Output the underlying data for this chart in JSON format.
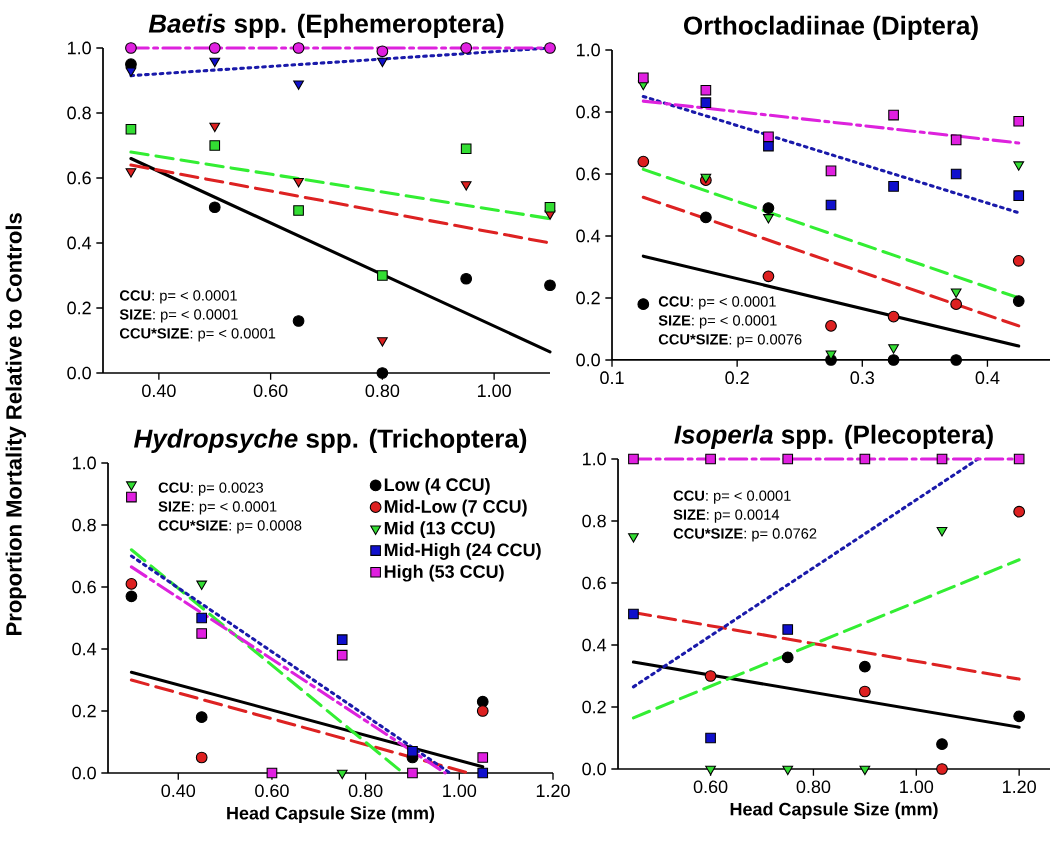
{
  "chart_data": [
    {
      "type": "scatter",
      "title": "*Baetis* spp. (Ephemeroptera)",
      "ylabel": "Proportion Mortality Relative to Controls",
      "xlim": [
        0.3,
        1.1
      ],
      "xticks": [
        {
          "value": 0.4,
          "label": "0.40"
        },
        {
          "value": 0.6,
          "label": "0.60"
        },
        {
          "value": 0.8,
          "label": "0.80"
        },
        {
          "value": 1.0,
          "label": "1.00"
        }
      ],
      "ylim": [
        0,
        1
      ],
      "yticks": [
        {
          "value": 0,
          "label": "0.0"
        },
        {
          "value": 0.2,
          "label": "0.2"
        },
        {
          "value": 0.4,
          "label": "0.4"
        },
        {
          "value": 0.6,
          "label": "0.6"
        },
        {
          "value": 0.8,
          "label": "0.8"
        },
        {
          "value": 1,
          "label": "1.0"
        }
      ],
      "annotations": [
        "**CCU**: p= < 0.0001",
        "**SIZE**: p= < 0.0001",
        "**CCU*SIZE**: p= < 0.0001"
      ],
      "series": [
        {
          "color": "#000000",
          "marker": "circle",
          "x": [
            0.35,
            0.5,
            0.65,
            0.8,
            0.95,
            1.1
          ],
          "values": [
            0.95,
            0.51,
            0.16,
            0.0,
            0.29,
            0.27
          ]
        },
        {
          "color": "#dd2020",
          "marker": "triangle",
          "x": [
            0.35,
            0.5,
            0.65,
            0.8,
            0.95,
            1.1
          ],
          "values": [
            0.62,
            0.76,
            0.59,
            0.1,
            0.58,
            0.49
          ]
        },
        {
          "color": "#33dd33",
          "marker": "square",
          "x": [
            0.35,
            0.5,
            0.65,
            0.8,
            0.95,
            1.1
          ],
          "values": [
            0.75,
            0.7,
            0.5,
            0.3,
            0.69,
            0.51
          ]
        },
        {
          "color": "#1010cc",
          "marker": "triangle",
          "x": [
            0.35,
            0.5,
            0.65,
            0.8
          ],
          "values": [
            0.93,
            0.96,
            0.89,
            0.96
          ]
        },
        {
          "color": "#e020e0",
          "marker": "circle",
          "x": [
            0.35,
            0.5,
            0.65,
            0.8,
            0.95,
            1.1
          ],
          "values": [
            1.0,
            1.0,
            1.0,
            0.99,
            1.0,
            1.0
          ]
        },
        {
          "type": "line",
          "color": "#000000",
          "line_style": "solid",
          "x": [
            0.35,
            1.1
          ],
          "values": [
            0.66,
            0.065
          ]
        },
        {
          "type": "line",
          "color": "#dd2222",
          "line_style": "dashed",
          "x": [
            0.35,
            1.1
          ],
          "values": [
            0.64,
            0.4
          ]
        },
        {
          "type": "line",
          "color": "#33ee33",
          "line_style": "dashed",
          "x": [
            0.35,
            1.1
          ],
          "values": [
            0.68,
            0.475
          ]
        },
        {
          "type": "line",
          "color": "#1a1aaa",
          "line_style": "dotted",
          "x": [
            0.35,
            1.1
          ],
          "values": [
            0.915,
            1.0
          ]
        },
        {
          "type": "line",
          "color": "#dd22dd",
          "line_style": "dashdot",
          "x": [
            0.35,
            1.1
          ],
          "values": [
            1.0,
            1.0
          ]
        }
      ]
    },
    {
      "type": "scatter",
      "title": "Orthocladiinae (Diptera)",
      "xlim": [
        0.1,
        0.45
      ],
      "xticks": [
        0.1,
        0.2,
        0.3,
        0.4
      ],
      "ylim": [
        0,
        1
      ],
      "yticks": [
        {
          "value": 0,
          "label": "0.0"
        },
        {
          "value": 0.2,
          "label": "0.2"
        },
        {
          "value": 0.4,
          "label": "0.4"
        },
        {
          "value": 0.6,
          "label": "0.6"
        },
        {
          "value": 0.8,
          "label": "0.8"
        },
        {
          "value": 1,
          "label": "1.0"
        }
      ],
      "annotations": [
        "**CCU**: p= < 0.0001",
        "**SIZE**: p= < 0.0001",
        "**CCU*SIZE**: p= 0.0076"
      ],
      "series": [
        {
          "color": "#000000",
          "marker": "circle",
          "x": [
            0.125,
            0.175,
            0.225,
            0.275,
            0.325,
            0.375,
            0.425
          ],
          "values": [
            0.18,
            0.46,
            0.49,
            0.0,
            0.0,
            0.0,
            0.19
          ]
        },
        {
          "color": "#dd2020",
          "marker": "circle",
          "x": [
            0.125,
            0.175,
            0.225,
            0.275,
            0.325,
            0.375,
            0.425
          ],
          "values": [
            0.64,
            0.58,
            0.27,
            0.11,
            0.14,
            0.18,
            0.32
          ]
        },
        {
          "color": "#33dd33",
          "marker": "triangle",
          "x": [
            0.125,
            0.175,
            0.225,
            0.275,
            0.325,
            0.375,
            0.425
          ],
          "values": [
            0.89,
            0.59,
            0.46,
            0.02,
            0.04,
            0.22,
            0.63
          ]
        },
        {
          "color": "#1010cc",
          "marker": "square",
          "x": [
            0.175,
            0.225,
            0.275,
            0.325,
            0.375,
            0.425
          ],
          "values": [
            0.83,
            0.69,
            0.5,
            0.56,
            0.6,
            0.53
          ]
        },
        {
          "color": "#e020e0",
          "marker": "square",
          "x": [
            0.125,
            0.175,
            0.225,
            0.275,
            0.325,
            0.375,
            0.425
          ],
          "values": [
            0.91,
            0.87,
            0.72,
            0.61,
            0.79,
            0.71,
            0.77
          ]
        },
        {
          "type": "line",
          "color": "#000000",
          "line_style": "solid",
          "x": [
            0.125,
            0.425
          ],
          "values": [
            0.335,
            0.045
          ]
        },
        {
          "type": "line",
          "color": "#dd2222",
          "line_style": "dashed",
          "x": [
            0.125,
            0.425
          ],
          "values": [
            0.525,
            0.11
          ]
        },
        {
          "type": "line",
          "color": "#33ee33",
          "line_style": "dashed",
          "x": [
            0.125,
            0.425
          ],
          "values": [
            0.615,
            0.2
          ]
        },
        {
          "type": "line",
          "color": "#1a1aaa",
          "line_style": "dotted",
          "x": [
            0.125,
            0.425
          ],
          "values": [
            0.85,
            0.475
          ]
        },
        {
          "type": "line",
          "color": "#dd22dd",
          "line_style": "dashdot",
          "x": [
            0.125,
            0.425
          ],
          "values": [
            0.835,
            0.7
          ]
        }
      ]
    },
    {
      "type": "scatter",
      "title": "*Hydropsyche* spp. (Trichoptera)",
      "xlabel": "Head Capsule Size (mm)",
      "legend": "top right",
      "xlim": [
        0.25,
        1.2
      ],
      "xticks": [
        {
          "value": 0.4,
          "label": "0.40"
        },
        {
          "value": 0.6,
          "label": "0.60"
        },
        {
          "value": 0.8,
          "label": "0.80"
        },
        {
          "value": 1.0,
          "label": "1.00"
        },
        {
          "value": 1.2,
          "label": "1.20"
        }
      ],
      "ylim": [
        0,
        1
      ],
      "yticks": [
        {
          "value": 0,
          "label": "0.0"
        },
        {
          "value": 0.2,
          "label": "0.2"
        },
        {
          "value": 0.4,
          "label": "0.4"
        },
        {
          "value": 0.6,
          "label": "0.6"
        },
        {
          "value": 0.8,
          "label": "0.8"
        },
        {
          "value": 1,
          "label": "1.0"
        }
      ],
      "annotations": [
        "**CCU**: p= 0.0023",
        "**SIZE**: p= < 0.0001",
        "**CCU*SIZE**: p= 0.0008"
      ],
      "series": [
        {
          "name": "Low (4 CCU)",
          "color": "#000000",
          "marker": "circle",
          "x": [
            0.3,
            0.45,
            0.9,
            1.05
          ],
          "values": [
            0.57,
            0.18,
            0.05,
            0.23
          ]
        },
        {
          "name": "Mid-Low (7 CCU)",
          "color": "#dd2020",
          "marker": "circle",
          "x": [
            0.3,
            0.45,
            1.05
          ],
          "values": [
            0.61,
            0.05,
            0.2
          ]
        },
        {
          "name": "Mid (13 CCU)",
          "color": "#33dd33",
          "marker": "triangle",
          "x": [
            0.3,
            0.45,
            0.75
          ],
          "values": [
            0.93,
            0.61,
            0.0
          ]
        },
        {
          "name": "Mid-High (24 CCU)",
          "color": "#1010cc",
          "marker": "square",
          "x": [
            0.45,
            0.75,
            0.9,
            1.05
          ],
          "values": [
            0.5,
            0.43,
            0.07,
            0.0
          ]
        },
        {
          "name": "High (53 CCU)",
          "color": "#e020e0",
          "marker": "square",
          "x": [
            0.3,
            0.45,
            0.6,
            0.75,
            0.9,
            1.05
          ],
          "values": [
            0.89,
            0.45,
            0.0,
            0.38,
            0.0,
            0.05
          ]
        },
        {
          "type": "line",
          "color": "#000000",
          "line_style": "solid",
          "x": [
            0.3,
            1.05
          ],
          "values": [
            0.325,
            0.02
          ]
        },
        {
          "type": "line",
          "color": "#dd2222",
          "line_style": "dashed",
          "x": [
            0.3,
            1.02
          ],
          "values": [
            0.3,
            0.0
          ]
        },
        {
          "type": "line",
          "color": "#33ee33",
          "line_style": "dashed",
          "x": [
            0.3,
            0.88
          ],
          "values": [
            0.72,
            0.0
          ]
        },
        {
          "type": "line",
          "color": "#1a1aaa",
          "line_style": "dotted",
          "x": [
            0.3,
            0.98
          ],
          "values": [
            0.7,
            0.0
          ]
        },
        {
          "type": "line",
          "color": "#dd22dd",
          "line_style": "dashdot",
          "x": [
            0.3,
            0.97
          ],
          "values": [
            0.665,
            0.0
          ]
        }
      ]
    },
    {
      "type": "scatter",
      "title": "*Isoperla* spp. (Plecoptera)",
      "xlabel": "Head Capsule Size (mm)",
      "xlim": [
        0.42,
        1.26
      ],
      "xticks": [
        {
          "value": 0.6,
          "label": "0.60"
        },
        {
          "value": 0.8,
          "label": "0.80"
        },
        {
          "value": 1.0,
          "label": "1.00"
        },
        {
          "value": 1.2,
          "label": "1.20"
        }
      ],
      "ylim": [
        0,
        1
      ],
      "yticks": [
        {
          "value": 0,
          "label": "0.0"
        },
        {
          "value": 0.2,
          "label": "0.2"
        },
        {
          "value": 0.4,
          "label": "0.4"
        },
        {
          "value": 0.6,
          "label": "0.6"
        },
        {
          "value": 0.8,
          "label": "0.8"
        },
        {
          "value": 1,
          "label": "1.0"
        }
      ],
      "annotations": [
        "**CCU**: p= < 0.0001",
        "**SIZE**: p= 0.0014",
        "**CCU*SIZE**: p= 0.0762"
      ],
      "series": [
        {
          "color": "#000000",
          "marker": "circle",
          "x": [
            0.75,
            0.9,
            1.05,
            1.2
          ],
          "values": [
            0.36,
            0.33,
            0.08,
            0.17
          ]
        },
        {
          "color": "#dd2020",
          "marker": "circle",
          "x": [
            0.6,
            0.9,
            1.05,
            1.2
          ],
          "values": [
            0.3,
            0.25,
            0.0,
            0.83
          ]
        },
        {
          "color": "#33dd33",
          "marker": "triangle",
          "x": [
            0.45,
            0.6,
            0.75,
            0.9,
            1.05
          ],
          "values": [
            0.75,
            0.0,
            0.0,
            0.0,
            0.77
          ]
        },
        {
          "color": "#1010cc",
          "marker": "square",
          "x": [
            0.45,
            0.6,
            0.75
          ],
          "values": [
            0.5,
            0.1,
            0.45
          ]
        },
        {
          "color": "#e020e0",
          "marker": "square",
          "x": [
            0.45,
            0.6,
            0.75,
            0.9,
            1.05,
            1.2
          ],
          "values": [
            1.0,
            1.0,
            1.0,
            1.0,
            1.0,
            1.0
          ]
        },
        {
          "type": "line",
          "color": "#000000",
          "line_style": "solid",
          "x": [
            0.45,
            1.2
          ],
          "values": [
            0.345,
            0.135
          ]
        },
        {
          "type": "line",
          "color": "#dd2222",
          "line_style": "dashed",
          "x": [
            0.45,
            1.2
          ],
          "values": [
            0.505,
            0.29
          ]
        },
        {
          "type": "line",
          "color": "#33ee33",
          "line_style": "dashed",
          "x": [
            0.45,
            1.2
          ],
          "values": [
            0.165,
            0.675
          ]
        },
        {
          "type": "line",
          "color": "#1a1aaa",
          "line_style": "dotted",
          "x": [
            0.45,
            1.12
          ],
          "values": [
            0.265,
            1.0
          ]
        },
        {
          "type": "line",
          "color": "#dd22dd",
          "line_style": "dashdot",
          "x": [
            0.45,
            1.2
          ],
          "values": [
            1.0,
            1.0
          ]
        }
      ]
    }
  ]
}
